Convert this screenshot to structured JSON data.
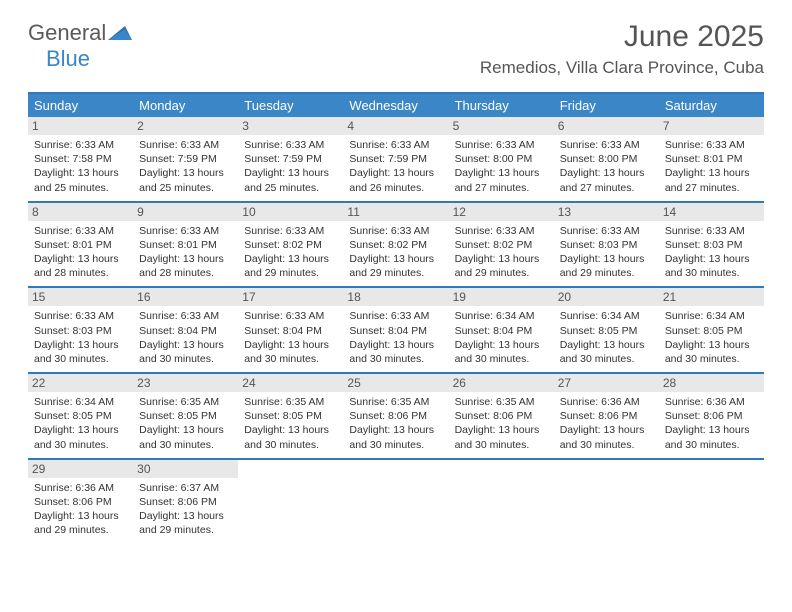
{
  "logo": {
    "general": "General",
    "blue": "Blue"
  },
  "title": "June 2025",
  "location": "Remedios, Villa Clara Province, Cuba",
  "weekdays": [
    "Sunday",
    "Monday",
    "Tuesday",
    "Wednesday",
    "Thursday",
    "Friday",
    "Saturday"
  ],
  "colors": {
    "header_bg": "#3b86c6",
    "border": "#2f7ab8",
    "daynum_bg": "#e8e8e8",
    "text": "#333333",
    "title_text": "#555555"
  },
  "weeks": [
    [
      {
        "num": "1",
        "sunrise": "6:33 AM",
        "sunset": "7:58 PM",
        "daylight": "13 hours and 25 minutes."
      },
      {
        "num": "2",
        "sunrise": "6:33 AM",
        "sunset": "7:59 PM",
        "daylight": "13 hours and 25 minutes."
      },
      {
        "num": "3",
        "sunrise": "6:33 AM",
        "sunset": "7:59 PM",
        "daylight": "13 hours and 25 minutes."
      },
      {
        "num": "4",
        "sunrise": "6:33 AM",
        "sunset": "7:59 PM",
        "daylight": "13 hours and 26 minutes."
      },
      {
        "num": "5",
        "sunrise": "6:33 AM",
        "sunset": "8:00 PM",
        "daylight": "13 hours and 27 minutes."
      },
      {
        "num": "6",
        "sunrise": "6:33 AM",
        "sunset": "8:00 PM",
        "daylight": "13 hours and 27 minutes."
      },
      {
        "num": "7",
        "sunrise": "6:33 AM",
        "sunset": "8:01 PM",
        "daylight": "13 hours and 27 minutes."
      }
    ],
    [
      {
        "num": "8",
        "sunrise": "6:33 AM",
        "sunset": "8:01 PM",
        "daylight": "13 hours and 28 minutes."
      },
      {
        "num": "9",
        "sunrise": "6:33 AM",
        "sunset": "8:01 PM",
        "daylight": "13 hours and 28 minutes."
      },
      {
        "num": "10",
        "sunrise": "6:33 AM",
        "sunset": "8:02 PM",
        "daylight": "13 hours and 29 minutes."
      },
      {
        "num": "11",
        "sunrise": "6:33 AM",
        "sunset": "8:02 PM",
        "daylight": "13 hours and 29 minutes."
      },
      {
        "num": "12",
        "sunrise": "6:33 AM",
        "sunset": "8:02 PM",
        "daylight": "13 hours and 29 minutes."
      },
      {
        "num": "13",
        "sunrise": "6:33 AM",
        "sunset": "8:03 PM",
        "daylight": "13 hours and 29 minutes."
      },
      {
        "num": "14",
        "sunrise": "6:33 AM",
        "sunset": "8:03 PM",
        "daylight": "13 hours and 30 minutes."
      }
    ],
    [
      {
        "num": "15",
        "sunrise": "6:33 AM",
        "sunset": "8:03 PM",
        "daylight": "13 hours and 30 minutes."
      },
      {
        "num": "16",
        "sunrise": "6:33 AM",
        "sunset": "8:04 PM",
        "daylight": "13 hours and 30 minutes."
      },
      {
        "num": "17",
        "sunrise": "6:33 AM",
        "sunset": "8:04 PM",
        "daylight": "13 hours and 30 minutes."
      },
      {
        "num": "18",
        "sunrise": "6:33 AM",
        "sunset": "8:04 PM",
        "daylight": "13 hours and 30 minutes."
      },
      {
        "num": "19",
        "sunrise": "6:34 AM",
        "sunset": "8:04 PM",
        "daylight": "13 hours and 30 minutes."
      },
      {
        "num": "20",
        "sunrise": "6:34 AM",
        "sunset": "8:05 PM",
        "daylight": "13 hours and 30 minutes."
      },
      {
        "num": "21",
        "sunrise": "6:34 AM",
        "sunset": "8:05 PM",
        "daylight": "13 hours and 30 minutes."
      }
    ],
    [
      {
        "num": "22",
        "sunrise": "6:34 AM",
        "sunset": "8:05 PM",
        "daylight": "13 hours and 30 minutes."
      },
      {
        "num": "23",
        "sunrise": "6:35 AM",
        "sunset": "8:05 PM",
        "daylight": "13 hours and 30 minutes."
      },
      {
        "num": "24",
        "sunrise": "6:35 AM",
        "sunset": "8:05 PM",
        "daylight": "13 hours and 30 minutes."
      },
      {
        "num": "25",
        "sunrise": "6:35 AM",
        "sunset": "8:06 PM",
        "daylight": "13 hours and 30 minutes."
      },
      {
        "num": "26",
        "sunrise": "6:35 AM",
        "sunset": "8:06 PM",
        "daylight": "13 hours and 30 minutes."
      },
      {
        "num": "27",
        "sunrise": "6:36 AM",
        "sunset": "8:06 PM",
        "daylight": "13 hours and 30 minutes."
      },
      {
        "num": "28",
        "sunrise": "6:36 AM",
        "sunset": "8:06 PM",
        "daylight": "13 hours and 30 minutes."
      }
    ],
    [
      {
        "num": "29",
        "sunrise": "6:36 AM",
        "sunset": "8:06 PM",
        "daylight": "13 hours and 29 minutes."
      },
      {
        "num": "30",
        "sunrise": "6:37 AM",
        "sunset": "8:06 PM",
        "daylight": "13 hours and 29 minutes."
      },
      null,
      null,
      null,
      null,
      null
    ]
  ]
}
